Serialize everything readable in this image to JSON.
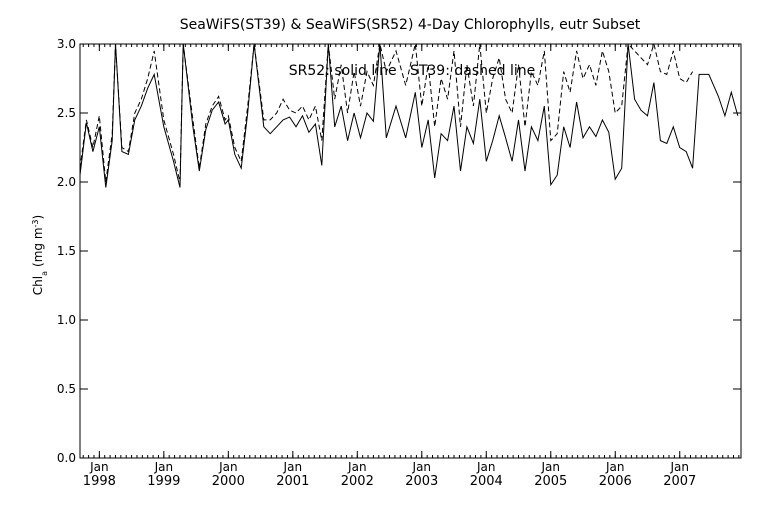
{
  "chart_data": {
    "type": "line",
    "title": "SeaWiFS(ST39) & SeaWiFS(SR52) 4-Day Chlorophylls, eutr Subset",
    "annotation": "SR52: solid line   ST39: dashed line",
    "ylabel_parts": {
      "main": "Chl",
      "sub": "a",
      "units": "(mg m",
      "sup": "-3",
      "close": ")"
    },
    "xlabel": "",
    "ylim": [
      0,
      3.0
    ],
    "xlim": [
      1997.7,
      2007.95
    ],
    "y_ticks": [
      0.0,
      0.5,
      1.0,
      1.5,
      2.0,
      2.5,
      3.0
    ],
    "y_tick_labels": [
      "0.0",
      "0.5",
      "1.0",
      "1.5",
      "2.0",
      "2.5",
      "3.0"
    ],
    "x_major_ticks": [
      {
        "x": 1998.0,
        "month": "Jan",
        "year": "1998"
      },
      {
        "x": 1999.0,
        "month": "Jan",
        "year": "1999"
      },
      {
        "x": 2000.0,
        "month": "Jan",
        "year": "2000"
      },
      {
        "x": 2001.0,
        "month": "Jan",
        "year": "2001"
      },
      {
        "x": 2002.0,
        "month": "Jan",
        "year": "2002"
      },
      {
        "x": 2003.0,
        "month": "Jan",
        "year": "2003"
      },
      {
        "x": 2004.0,
        "month": "Jan",
        "year": "2004"
      },
      {
        "x": 2005.0,
        "month": "Jan",
        "year": "2005"
      },
      {
        "x": 2006.0,
        "month": "Jan",
        "year": "2006"
      },
      {
        "x": 2007.0,
        "month": "Jan",
        "year": "2007"
      }
    ],
    "grid": false,
    "legend": "annotation text at top center",
    "series": [
      {
        "name": "SR52",
        "style": "solid",
        "color": "#000000",
        "x": [
          1997.7,
          1997.8,
          1997.9,
          1998.0,
          1998.1,
          1998.2,
          1998.25,
          1998.35,
          1998.45,
          1998.55,
          1998.65,
          1998.75,
          1998.85,
          1999.0,
          1999.15,
          1999.25,
          1999.3,
          1999.45,
          1999.55,
          1999.65,
          1999.75,
          1999.85,
          1999.95,
          2000.0,
          2000.1,
          2000.2,
          2000.3,
          2000.4,
          2000.55,
          2000.65,
          2000.75,
          2000.85,
          2000.95,
          2001.05,
          2001.15,
          2001.25,
          2001.35,
          2001.45,
          2001.55,
          2001.65,
          2001.75,
          2001.85,
          2001.95,
          2002.05,
          2002.15,
          2002.25,
          2002.35,
          2002.45,
          2002.6,
          2002.75,
          2002.9,
          2003.0,
          2003.1,
          2003.2,
          2003.3,
          2003.4,
          2003.5,
          2003.6,
          2003.7,
          2003.8,
          2003.9,
          2004.0,
          2004.1,
          2004.2,
          2004.3,
          2004.4,
          2004.5,
          2004.6,
          2004.7,
          2004.8,
          2004.9,
          2005.0,
          2005.1,
          2005.2,
          2005.3,
          2005.4,
          2005.5,
          2005.6,
          2005.7,
          2005.8,
          2005.9,
          2006.0,
          2006.1,
          2006.2,
          2006.3,
          2006.4,
          2006.5,
          2006.6,
          2006.7,
          2006.8,
          2006.9,
          2007.0,
          2007.1,
          2007.2,
          2007.3,
          2007.45,
          2007.6,
          2007.7,
          2007.8,
          2007.9
        ],
        "y": [
          2.05,
          2.43,
          2.22,
          2.4,
          1.96,
          2.3,
          3.0,
          2.22,
          2.2,
          2.45,
          2.55,
          2.68,
          2.78,
          2.4,
          2.15,
          1.96,
          3.0,
          2.4,
          2.08,
          2.38,
          2.52,
          2.58,
          2.42,
          2.45,
          2.2,
          2.1,
          2.5,
          3.0,
          2.4,
          2.35,
          2.4,
          2.45,
          2.47,
          2.4,
          2.48,
          2.36,
          2.42,
          2.12,
          3.0,
          2.4,
          2.55,
          2.3,
          2.5,
          2.32,
          2.5,
          2.44,
          3.0,
          2.32,
          2.55,
          2.32,
          2.65,
          2.25,
          2.45,
          2.03,
          2.35,
          2.3,
          2.55,
          2.08,
          2.4,
          2.28,
          2.6,
          2.15,
          2.3,
          2.48,
          2.32,
          2.15,
          2.45,
          2.08,
          2.4,
          2.3,
          2.55,
          1.98,
          2.05,
          2.4,
          2.25,
          2.58,
          2.32,
          2.4,
          2.33,
          2.45,
          2.36,
          2.02,
          2.1,
          3.0,
          2.6,
          2.52,
          2.48,
          2.72,
          2.3,
          2.28,
          2.4,
          2.25,
          2.22,
          2.1,
          2.78,
          2.78,
          2.62,
          2.48,
          2.65,
          2.48
        ]
      },
      {
        "name": "ST39",
        "style": "dashed",
        "color": "#000000",
        "x": [
          1997.7,
          1997.8,
          1997.9,
          1998.0,
          1998.1,
          1998.2,
          1998.25,
          1998.35,
          1998.45,
          1998.55,
          1998.65,
          1998.75,
          1998.85,
          1999.0,
          1999.15,
          1999.25,
          1999.3,
          1999.45,
          1999.55,
          1999.65,
          1999.75,
          1999.85,
          1999.95,
          2000.0,
          2000.1,
          2000.2,
          2000.3,
          2000.4,
          2000.55,
          2000.65,
          2000.75,
          2000.85,
          2000.95,
          2001.05,
          2001.15,
          2001.25,
          2001.35,
          2001.45,
          2001.55,
          2001.65,
          2001.75,
          2001.85,
          2001.95,
          2002.05,
          2002.15,
          2002.25,
          2002.35,
          2002.45,
          2002.6,
          2002.75,
          2002.9,
          2003.0,
          2003.1,
          2003.2,
          2003.3,
          2003.4,
          2003.5,
          2003.6,
          2003.7,
          2003.8,
          2003.9,
          2004.0,
          2004.1,
          2004.2,
          2004.3,
          2004.4,
          2004.5,
          2004.6,
          2004.7,
          2004.8,
          2004.9,
          2005.0,
          2005.1,
          2005.2,
          2005.3,
          2005.4,
          2005.5,
          2005.6,
          2005.7,
          2005.8,
          2005.9,
          2006.0,
          2006.1,
          2006.2,
          2006.3,
          2006.4,
          2006.5,
          2006.6,
          2006.7,
          2006.8,
          2006.9,
          2007.0,
          2007.1,
          2007.2
        ],
        "y": [
          2.1,
          2.45,
          2.25,
          2.48,
          2.0,
          2.35,
          3.0,
          2.25,
          2.22,
          2.5,
          2.6,
          2.75,
          2.95,
          2.45,
          2.2,
          2.0,
          3.0,
          2.45,
          2.1,
          2.42,
          2.55,
          2.62,
          2.45,
          2.48,
          2.25,
          2.15,
          2.55,
          3.0,
          2.45,
          2.45,
          2.5,
          2.6,
          2.52,
          2.5,
          2.55,
          2.45,
          2.55,
          2.3,
          3.0,
          2.6,
          2.85,
          2.5,
          2.8,
          2.55,
          2.8,
          2.7,
          3.0,
          2.8,
          2.95,
          2.7,
          3.0,
          2.55,
          2.85,
          2.4,
          2.75,
          2.6,
          2.95,
          2.4,
          2.85,
          2.55,
          3.0,
          2.5,
          2.75,
          2.9,
          2.6,
          2.5,
          2.85,
          2.4,
          2.8,
          2.7,
          2.95,
          2.3,
          2.35,
          2.8,
          2.65,
          2.95,
          2.75,
          2.85,
          2.7,
          2.95,
          2.8,
          2.5,
          2.55,
          3.0,
          2.95,
          2.9,
          2.85,
          3.0,
          2.8,
          2.78,
          2.95,
          2.75,
          2.72,
          2.8
        ]
      }
    ]
  }
}
